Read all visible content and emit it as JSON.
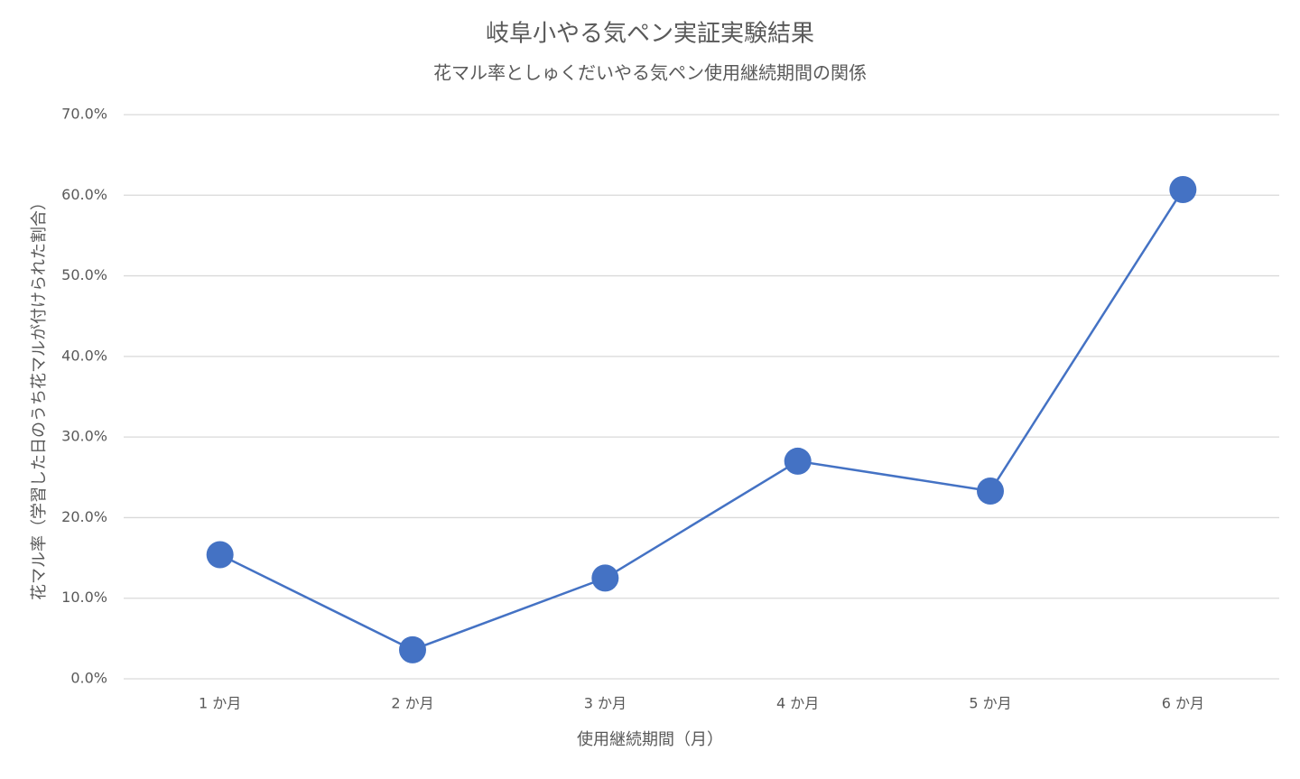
{
  "chart_data": {
    "type": "line",
    "title": "岐阜小やる気ペン実証実験結果",
    "subtitle": "花マル率としゅくだいやる気ペン使用継続期間の関係",
    "x_label": "使用継続期間（月）",
    "y_label": "花マル率（学習した日のうち花マルが付けられた割合）",
    "categories": [
      "1 か月",
      "2 か月",
      "3 か月",
      "4 か月",
      "5 か月",
      "6 か月"
    ],
    "series": [
      {
        "name": "花マル率",
        "color": "#4472c4",
        "values": [
          15.4,
          3.6,
          12.5,
          27.0,
          23.3,
          60.7
        ]
      }
    ],
    "ylim": [
      0,
      70
    ],
    "yticks": [
      {
        "value": 0,
        "label": "0.0%"
      },
      {
        "value": 10,
        "label": "10.0%"
      },
      {
        "value": 20,
        "label": "20.0%"
      },
      {
        "value": 30,
        "label": "30.0%"
      },
      {
        "value": 40,
        "label": "40.0%"
      },
      {
        "value": 50,
        "label": "50.0%"
      },
      {
        "value": 60,
        "label": "60.0%"
      },
      {
        "value": 70,
        "label": "70.0%"
      }
    ],
    "grid": true
  }
}
